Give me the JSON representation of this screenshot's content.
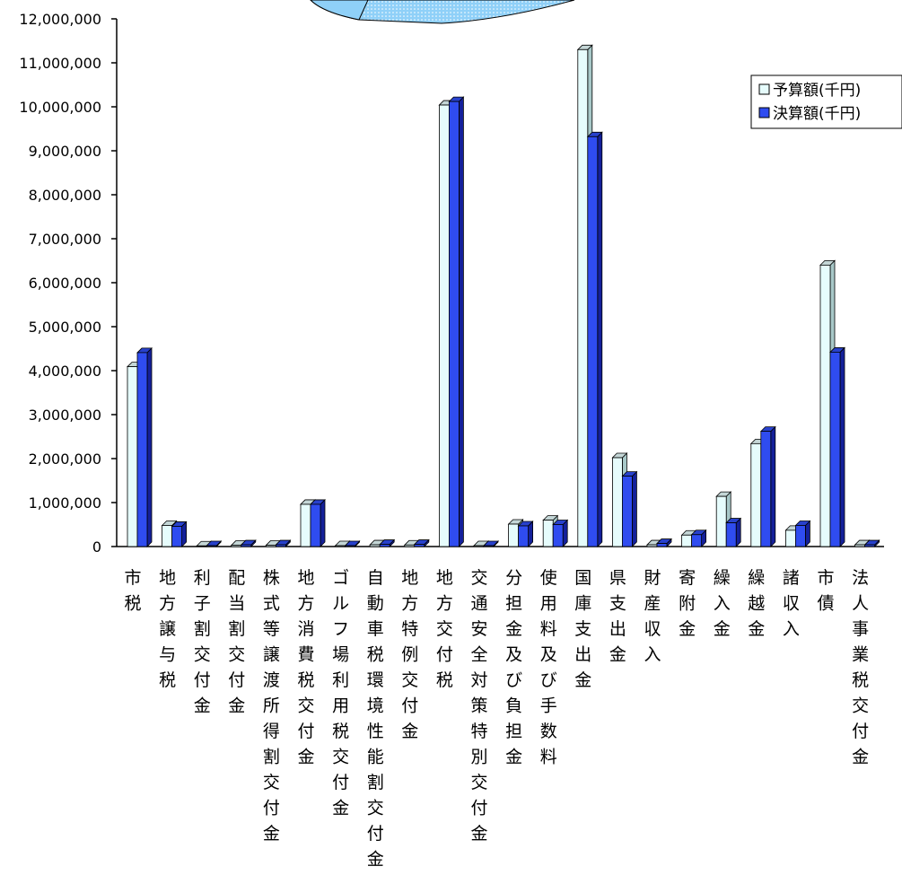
{
  "chart_data": {
    "type": "bar",
    "title": "",
    "xlabel": "",
    "ylabel": "",
    "ylim": [
      0,
      12000000
    ],
    "ytick_step": 1000000,
    "ytick_labels": [
      "0",
      "1,000,000",
      "2,000,000",
      "3,000,000",
      "4,000,000",
      "5,000,000",
      "6,000,000",
      "7,000,000",
      "8,000,000",
      "9,000,000",
      "10,000,000",
      "11,000,000",
      "12,000,000"
    ],
    "grid": false,
    "legend_position": "top-right",
    "bar_style": "3d",
    "categories": [
      "市税",
      "地方譲与税",
      "利子割交付金",
      "配当割交付金",
      "株式等譲渡所得割交付金",
      "地方消費税交付金",
      "ゴルフ場利用税交付金",
      "自動車税環境性能割交付金",
      "地方特例交付金",
      "地方交付税",
      "交通安全対策特別交付金",
      "分担金及び負担金",
      "使用料及び手数料",
      "国庫支出金",
      "県支出金",
      "財産収入",
      "寄附金",
      "繰入金",
      "繰越金",
      "諸収入",
      "市債",
      "法人事業税交付金"
    ],
    "series": [
      {
        "name": "予算額(千円)",
        "color": "#e6fcfc",
        "side_color": "#a8c8c8",
        "values": [
          4090000,
          480000,
          15000,
          30000,
          30000,
          960000,
          20000,
          40000,
          35000,
          10040000,
          20000,
          510000,
          600000,
          11300000,
          2020000,
          40000,
          260000,
          1140000,
          2340000,
          370000,
          6400000,
          40000
        ]
      },
      {
        "name": "決算額(千円)",
        "color": "#2f4cf0",
        "side_color": "#14209a",
        "values": [
          4410000,
          460000,
          20000,
          40000,
          40000,
          960000,
          20000,
          50000,
          50000,
          10120000,
          20000,
          470000,
          500000,
          9320000,
          1600000,
          70000,
          270000,
          540000,
          2620000,
          480000,
          4420000,
          40000
        ]
      }
    ],
    "pie_fragment_color": "#8fd0f8"
  }
}
